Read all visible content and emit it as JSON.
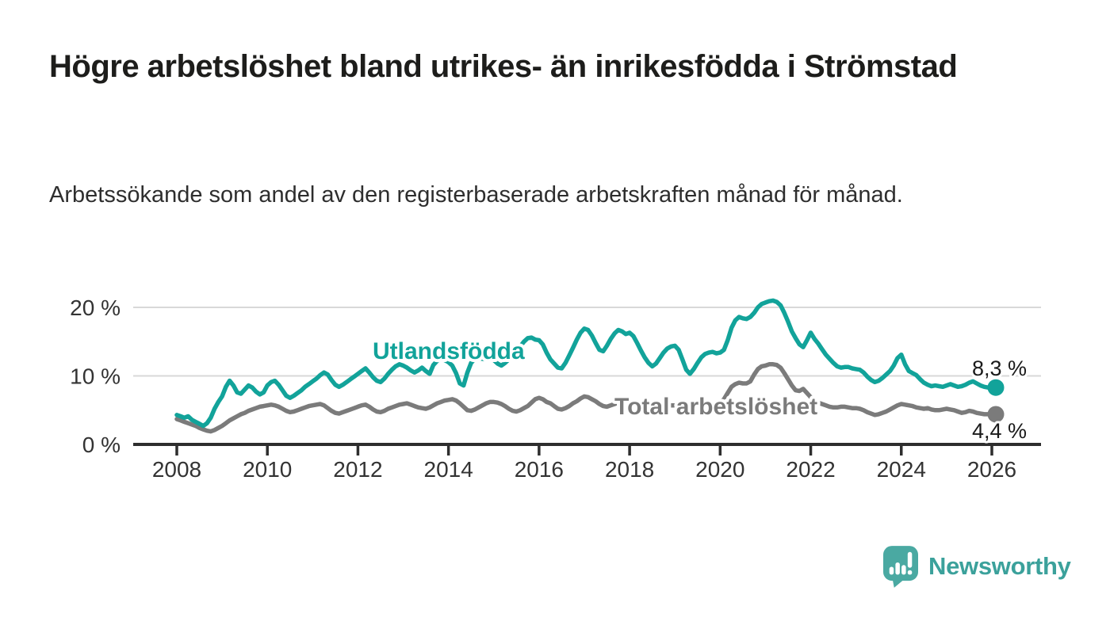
{
  "header": {
    "title": "Högre arbetslöshet bland utrikes- än inrikesfödda i Strömstad",
    "subtitle": "Arbetssökande som andel av den registerbaserade arbetskraften månad för månad."
  },
  "chart_data": {
    "type": "line",
    "title": "Högre arbetslöshet bland utrikes- än inrikesfödda i Strömstad",
    "subtitle": "Arbetssökande som andel av den registerbaserade arbetskraften månad för månad.",
    "unit": "%",
    "frequency": "monthly",
    "x_start": "2008-01",
    "x_end": "2026-01",
    "ylim": [
      0,
      22
    ],
    "grid": "horizontal",
    "legend_position": "inline-labels",
    "yticks": [
      {
        "value": 0,
        "label": "0 %"
      },
      {
        "value": 10,
        "label": "10 %"
      },
      {
        "value": 20,
        "label": "20 %"
      }
    ],
    "xticks": [
      {
        "year": 2008,
        "label": "2008"
      },
      {
        "year": 2010,
        "label": "2010"
      },
      {
        "year": 2012,
        "label": "2012"
      },
      {
        "year": 2014,
        "label": "2014"
      },
      {
        "year": 2016,
        "label": "2016"
      },
      {
        "year": 2018,
        "label": "2018"
      },
      {
        "year": 2020,
        "label": "2020"
      },
      {
        "year": 2022,
        "label": "2022"
      },
      {
        "year": 2024,
        "label": "2024"
      },
      {
        "year": 2026,
        "label": "2026"
      }
    ],
    "series": [
      {
        "name": "Utlandsfödda",
        "color": "#12a39a",
        "end_value": 8.3,
        "end_label": "8,3 %",
        "values": [
          4.3,
          4.1,
          3.9,
          4.1,
          3.6,
          3.3,
          3.0,
          2.7,
          3.1,
          3.9,
          5.2,
          6.2,
          7.0,
          8.4,
          9.3,
          8.6,
          7.6,
          7.4,
          8.0,
          8.6,
          8.3,
          7.7,
          7.3,
          7.6,
          8.6,
          9.1,
          9.3,
          8.7,
          7.9,
          7.1,
          6.8,
          7.1,
          7.5,
          7.9,
          8.4,
          8.8,
          9.2,
          9.6,
          10.1,
          10.5,
          10.2,
          9.4,
          8.7,
          8.4,
          8.7,
          9.1,
          9.5,
          9.9,
          10.3,
          10.7,
          11.1,
          10.5,
          9.8,
          9.3,
          9.1,
          9.6,
          10.3,
          10.9,
          11.4,
          11.7,
          11.5,
          11.2,
          10.8,
          10.5,
          10.8,
          11.2,
          10.7,
          10.3,
          11.6,
          12.2,
          12.5,
          12.3,
          12.0,
          11.5,
          10.4,
          8.9,
          8.6,
          10.5,
          11.9,
          12.5,
          12.6,
          12.5,
          12.4,
          12.5,
          12.3,
          11.8,
          11.5,
          11.9,
          12.4,
          13.0,
          13.6,
          14.3,
          15.0,
          15.5,
          15.6,
          15.3,
          15.2,
          14.6,
          13.4,
          12.4,
          11.8,
          11.2,
          11.1,
          11.9,
          13.0,
          14.1,
          15.3,
          16.3,
          16.9,
          16.7,
          15.9,
          14.8,
          13.8,
          13.6,
          14.4,
          15.4,
          16.2,
          16.7,
          16.5,
          16.1,
          16.3,
          15.8,
          14.8,
          13.7,
          12.7,
          11.9,
          11.4,
          11.8,
          12.6,
          13.4,
          14.0,
          14.3,
          14.4,
          13.8,
          12.4,
          10.9,
          10.3,
          11.0,
          11.9,
          12.7,
          13.2,
          13.4,
          13.5,
          13.3,
          13.4,
          13.8,
          15.2,
          17.0,
          18.1,
          18.6,
          18.4,
          18.3,
          18.6,
          19.2,
          20.0,
          20.5,
          20.7,
          20.9,
          21.0,
          20.8,
          20.3,
          19.2,
          17.9,
          16.5,
          15.5,
          14.6,
          14.2,
          15.2,
          16.3,
          15.4,
          14.7,
          13.9,
          13.1,
          12.5,
          11.9,
          11.4,
          11.2,
          11.3,
          11.3,
          11.1,
          11.0,
          10.9,
          10.5,
          9.9,
          9.4,
          9.1,
          9.3,
          9.7,
          10.2,
          10.7,
          11.5,
          12.6,
          13.1,
          11.7,
          10.7,
          10.4,
          10.1,
          9.5,
          9.0,
          8.7,
          8.5,
          8.6,
          8.5,
          8.4,
          8.6,
          8.8,
          8.6,
          8.4,
          8.5,
          8.7,
          9.0,
          9.2,
          8.9,
          8.6,
          8.4,
          8.3,
          8.3
        ]
      },
      {
        "name": "Total arbetslöshet",
        "color": "#7b7b7b",
        "end_value": 4.4,
        "end_label": "4,4 %",
        "values": [
          3.7,
          3.5,
          3.3,
          3.1,
          2.9,
          2.7,
          2.4,
          2.2,
          2.0,
          1.9,
          2.1,
          2.4,
          2.7,
          3.1,
          3.5,
          3.8,
          4.1,
          4.4,
          4.6,
          4.9,
          5.1,
          5.3,
          5.5,
          5.6,
          5.7,
          5.8,
          5.7,
          5.5,
          5.2,
          4.9,
          4.7,
          4.8,
          5.0,
          5.2,
          5.4,
          5.6,
          5.7,
          5.8,
          5.9,
          5.7,
          5.3,
          4.9,
          4.6,
          4.5,
          4.7,
          4.9,
          5.1,
          5.3,
          5.5,
          5.7,
          5.8,
          5.5,
          5.1,
          4.8,
          4.7,
          4.9,
          5.2,
          5.4,
          5.6,
          5.8,
          5.9,
          6.0,
          5.8,
          5.6,
          5.4,
          5.3,
          5.2,
          5.4,
          5.7,
          6.0,
          6.2,
          6.4,
          6.5,
          6.6,
          6.4,
          6.0,
          5.5,
          5.0,
          4.9,
          5.1,
          5.4,
          5.7,
          6.0,
          6.2,
          6.2,
          6.1,
          5.9,
          5.6,
          5.2,
          4.9,
          4.8,
          5.0,
          5.3,
          5.6,
          6.1,
          6.6,
          6.8,
          6.6,
          6.2,
          6.0,
          5.6,
          5.2,
          5.1,
          5.3,
          5.6,
          6.0,
          6.3,
          6.7,
          7.0,
          6.9,
          6.6,
          6.3,
          5.9,
          5.6,
          5.5,
          5.7,
          5.9,
          6.1,
          6.2,
          6.3,
          6.3,
          6.2,
          6.0,
          5.7,
          5.4,
          5.2,
          5.1,
          5.2,
          5.4,
          5.5,
          5.6,
          5.7,
          5.7,
          5.6,
          5.3,
          5.1,
          5.0,
          5.1,
          5.2,
          5.3,
          5.5,
          5.6,
          5.8,
          5.9,
          6.1,
          6.6,
          7.5,
          8.4,
          8.8,
          9.0,
          8.9,
          8.9,
          9.2,
          10.2,
          11.0,
          11.4,
          11.5,
          11.7,
          11.7,
          11.6,
          11.2,
          10.4,
          9.5,
          8.6,
          7.9,
          7.8,
          8.1,
          7.5,
          6.9,
          6.4,
          6.1,
          5.9,
          5.7,
          5.5,
          5.4,
          5.4,
          5.5,
          5.5,
          5.4,
          5.3,
          5.3,
          5.2,
          5.0,
          4.7,
          4.5,
          4.3,
          4.4,
          4.6,
          4.8,
          5.1,
          5.4,
          5.7,
          5.9,
          5.8,
          5.7,
          5.6,
          5.4,
          5.3,
          5.2,
          5.3,
          5.1,
          5.0,
          5.0,
          5.1,
          5.2,
          5.1,
          5.0,
          4.8,
          4.6,
          4.7,
          4.9,
          4.8,
          4.6,
          4.5,
          4.4,
          4.4,
          4.4
        ]
      }
    ],
    "colors": {
      "grid": "#d8d8d8",
      "axis": "#2e2e2e",
      "tick_text": "#333333",
      "end_label_text": "#1a1a1a"
    }
  },
  "branding": {
    "name": "Newsworthy",
    "icon": "newsworthy-speech-bubble-chart-icon",
    "color": "#3ba19b",
    "icon_color": "#4aa9a2"
  }
}
